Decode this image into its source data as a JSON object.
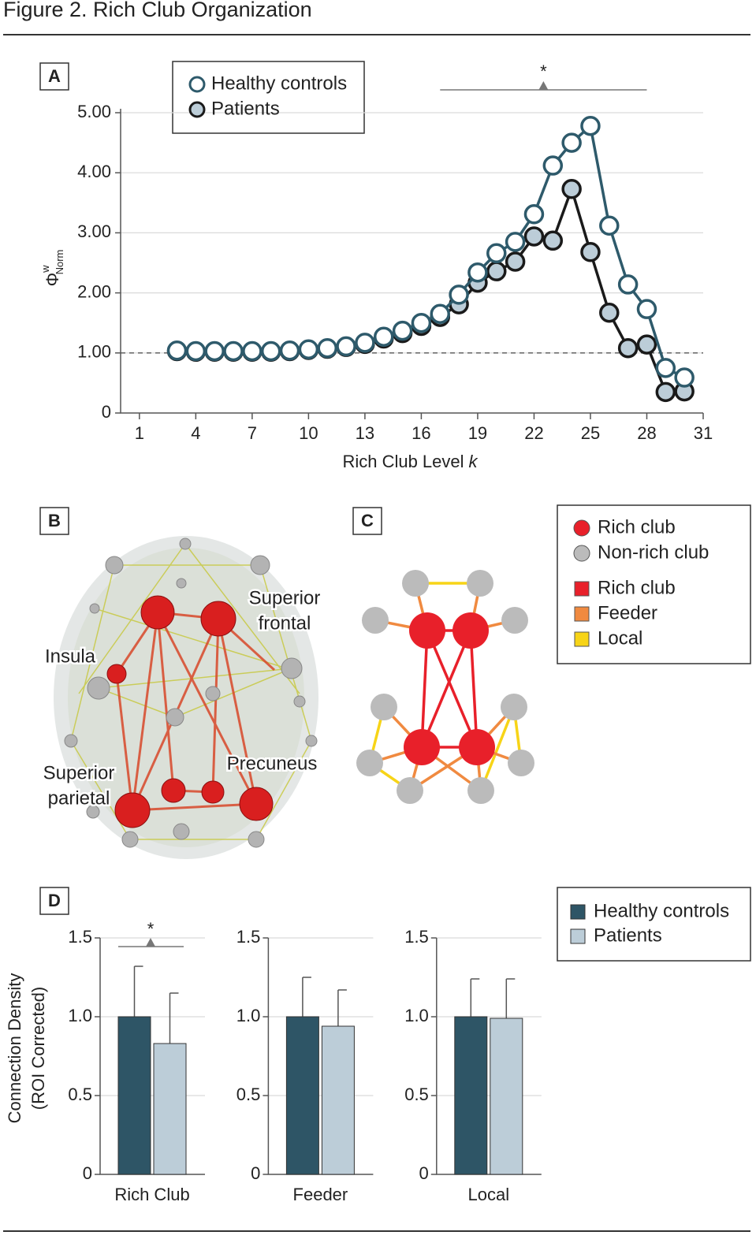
{
  "figure_title": "Figure 2. Rich Club Organization",
  "panel_labels": [
    "A",
    "B",
    "C",
    "D"
  ],
  "chart_data": [
    {
      "type": "line",
      "x": [
        3,
        4,
        5,
        6,
        7,
        8,
        9,
        10,
        11,
        12,
        13,
        14,
        15,
        16,
        17,
        18,
        19,
        20,
        21,
        22,
        23,
        24,
        25,
        26,
        27,
        28,
        29,
        30
      ],
      "series": [
        {
          "name": "Healthy controls",
          "color": "#2e5a6b",
          "fill": "#ffffff",
          "values": [
            1.04,
            1.03,
            1.03,
            1.03,
            1.03,
            1.03,
            1.04,
            1.06,
            1.08,
            1.11,
            1.17,
            1.27,
            1.37,
            1.5,
            1.65,
            1.97,
            2.34,
            2.66,
            2.85,
            3.31,
            4.12,
            4.5,
            4.78,
            3.12,
            2.14,
            1.73,
            0.75,
            0.59
          ]
        },
        {
          "name": "Patients",
          "color": "#1a1a1a",
          "fill": "#bccdd8",
          "values": [
            1.03,
            1.02,
            1.02,
            1.02,
            1.02,
            1.02,
            1.03,
            1.05,
            1.07,
            1.1,
            1.15,
            1.24,
            1.33,
            1.45,
            1.6,
            1.81,
            2.17,
            2.36,
            2.52,
            2.94,
            2.87,
            3.73,
            2.68,
            1.67,
            1.08,
            1.14,
            0.35,
            0.36
          ]
        }
      ],
      "xlim": [
        0,
        31
      ],
      "xticks": [
        1,
        4,
        7,
        10,
        13,
        16,
        19,
        22,
        25,
        28,
        31
      ],
      "ylim": [
        0,
        5
      ],
      "yticks": [
        0,
        {
          "value": 1,
          "label": "1.00"
        },
        {
          "value": 2,
          "label": "2.00"
        },
        {
          "value": 3,
          "label": "3.00"
        },
        {
          "value": 4,
          "label": "4.00"
        },
        {
          "value": 5,
          "label": "5.00"
        }
      ],
      "grid": true,
      "reference_line": 1,
      "xlabel": "Rich Club Level",
      "xlabel_var": "k",
      "ylabel": "Φ",
      "ylabel_sup": "w",
      "ylabel_sub": "Norm",
      "significance": {
        "x": [
          17,
          28
        ],
        "label": "*"
      }
    },
    {
      "type": "bar",
      "categories": [
        "Rich Club",
        "Feeder",
        "Local"
      ],
      "series": [
        {
          "name": "Healthy controls",
          "color": "#2e5566",
          "values": [
            1.0,
            1.0,
            1.0
          ],
          "errors": [
            0.32,
            0.25,
            0.24
          ]
        },
        {
          "name": "Patients",
          "color": "#bccdd8",
          "values": [
            0.83,
            0.94,
            0.99
          ],
          "errors": [
            0.32,
            0.23,
            0.25
          ]
        }
      ],
      "ylim": [
        0,
        1.5
      ],
      "yticks": [
        0,
        0.5,
        {
          "value": 1,
          "label": "1.0"
        },
        1.5
      ],
      "grid": true,
      "ylabel": [
        "Connection Density",
        "(ROI Corrected)"
      ],
      "significance": {
        "category": 0,
        "label": "*"
      }
    }
  ],
  "panel_b": {
    "labels": [
      [
        "Superior",
        "frontal"
      ],
      [
        "Insula"
      ],
      [
        "Superior",
        "parietal"
      ],
      [
        "Precuneus"
      ]
    ]
  },
  "panel_c": {
    "legend_nodes": [
      {
        "label": "Rich club",
        "color": "#e8202a"
      },
      {
        "label": "Non-rich club",
        "color": "#bbbbbb"
      }
    ],
    "legend_edges": [
      {
        "label": "Rich club",
        "color": "#e8202a"
      },
      {
        "label": "Feeder",
        "color": "#f08a40"
      },
      {
        "label": "Local",
        "color": "#f7d417"
      }
    ]
  }
}
